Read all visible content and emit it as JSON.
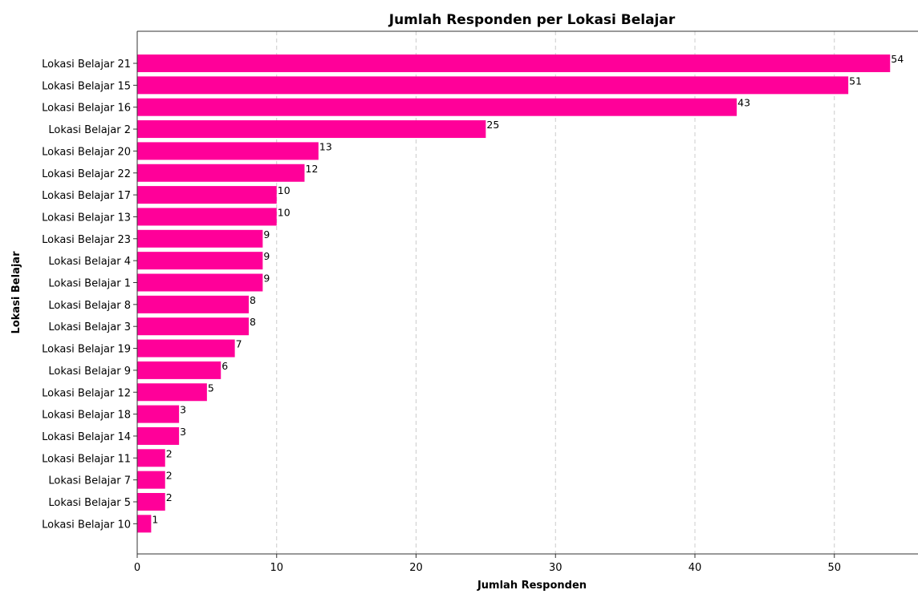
{
  "chart_data": {
    "type": "bar",
    "orientation": "horizontal",
    "title": "Jumlah Responden per Lokasi Belajar",
    "xlabel": "Jumlah Responden",
    "ylabel": "Lokasi Belajar",
    "xlim": [
      0,
      56
    ],
    "x_ticks": [
      0,
      10,
      20,
      30,
      40,
      50
    ],
    "grid": "vertical dashed",
    "bar_color": "#ff0099",
    "categories": [
      "Lokasi Belajar 21",
      "Lokasi Belajar 15",
      "Lokasi Belajar 16",
      "Lokasi Belajar 2",
      "Lokasi Belajar 20",
      "Lokasi Belajar 22",
      "Lokasi Belajar 17",
      "Lokasi Belajar 13",
      "Lokasi Belajar 23",
      "Lokasi Belajar 4",
      "Lokasi Belajar 1",
      "Lokasi Belajar 8",
      "Lokasi Belajar 3",
      "Lokasi Belajar 19",
      "Lokasi Belajar 9",
      "Lokasi Belajar 12",
      "Lokasi Belajar 18",
      "Lokasi Belajar 14",
      "Lokasi Belajar 11",
      "Lokasi Belajar 7",
      "Lokasi Belajar 5",
      "Lokasi Belajar 10"
    ],
    "values": [
      54,
      51,
      43,
      25,
      13,
      12,
      10,
      10,
      9,
      9,
      9,
      8,
      8,
      7,
      6,
      5,
      3,
      3,
      2,
      2,
      2,
      1
    ]
  }
}
